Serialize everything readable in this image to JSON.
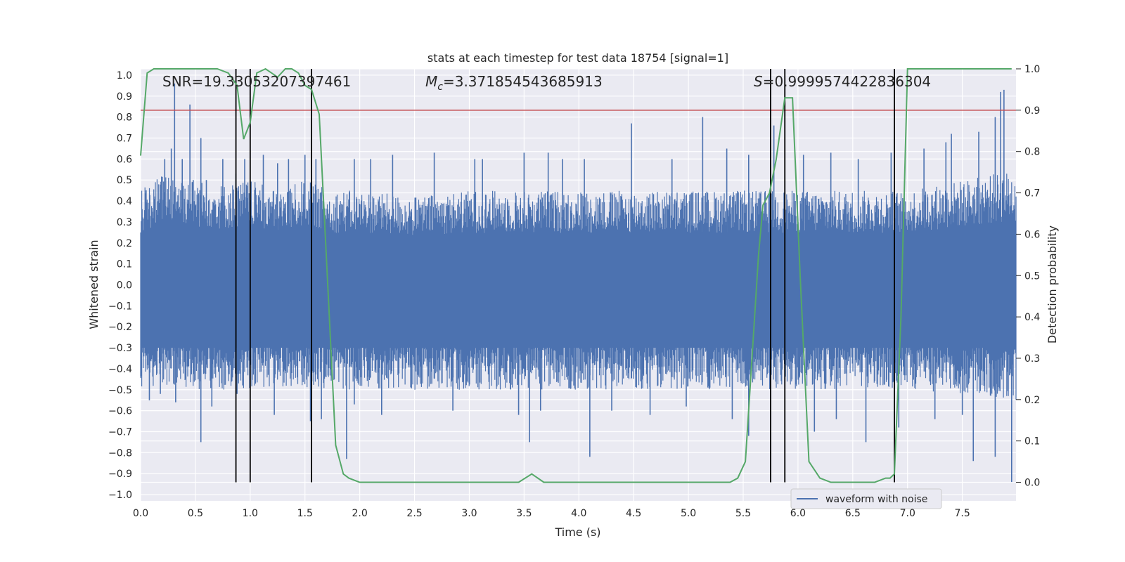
{
  "chart_data": {
    "type": "line",
    "title": "stats at each timestep for test data 18754 [signal=1]",
    "xlabel": "Time (s)",
    "ylabel_left": "Whitened strain",
    "ylabel_right": "Detection probability",
    "xlim": [
      0.0,
      7.99
    ],
    "ylim_left": [
      -1.03,
      1.03
    ],
    "ylim_right": [
      -0.045,
      1.0
    ],
    "x_ticks": [
      "0.0",
      "0.5",
      "1.0",
      "1.5",
      "2.0",
      "2.5",
      "3.0",
      "3.5",
      "4.0",
      "4.5",
      "5.0",
      "5.5",
      "6.0",
      "6.5",
      "7.0",
      "7.5"
    ],
    "y_ticks_left": [
      "1.0",
      "0.9",
      "0.8",
      "0.7",
      "0.6",
      "0.5",
      "0.4",
      "0.3",
      "0.2",
      "0.1",
      "0.0",
      "−0.1",
      "−0.2",
      "−0.3",
      "−0.4",
      "−0.5",
      "−0.6",
      "−0.7",
      "−0.8",
      "−0.9",
      "−1.0"
    ],
    "y_ticks_right": [
      "1.0",
      "0.9",
      "0.8",
      "0.7",
      "0.6",
      "0.5",
      "0.4",
      "0.3",
      "0.2",
      "0.1",
      "0.0"
    ],
    "grid": true,
    "legend": {
      "position": "lower-right",
      "entries": [
        "waveform with noise"
      ]
    },
    "annotations": {
      "snr": "SNR=19.33053207397461",
      "mc_symbol": "M",
      "mc_sub": "c",
      "mc_value": "=3.371854543685913",
      "s_symbol": "S",
      "s_value": "=0.9999574422836304"
    },
    "threshold": {
      "value": 0.9,
      "axis": "right",
      "color": "#c44e52"
    },
    "vertical_markers": [
      0.87,
      1.0,
      1.56,
      5.75,
      5.88,
      6.88
    ],
    "series": [
      {
        "name": "waveform with noise",
        "color": "#4c72b0",
        "axis": "left",
        "envelope_x": [
          0.0,
          0.25,
          0.5,
          0.75,
          1.0,
          1.25,
          1.5,
          1.75,
          2.0,
          2.5,
          3.0,
          3.5,
          4.0,
          4.5,
          5.0,
          5.5,
          6.0,
          6.5,
          7.0,
          7.5,
          7.99
        ],
        "envelope_upper": [
          0.45,
          0.55,
          0.5,
          0.48,
          0.5,
          0.45,
          0.5,
          0.45,
          0.45,
          0.42,
          0.45,
          0.45,
          0.45,
          0.45,
          0.45,
          0.45,
          0.45,
          0.45,
          0.45,
          0.5,
          0.55
        ],
        "envelope_lower": [
          -0.5,
          -0.48,
          -0.5,
          -0.5,
          -0.5,
          -0.48,
          -0.5,
          -0.5,
          -0.5,
          -0.5,
          -0.5,
          -0.5,
          -0.5,
          -0.5,
          -0.5,
          -0.5,
          -0.5,
          -0.5,
          -0.5,
          -0.52,
          -0.55
        ],
        "spikes": [
          [
            0.05,
            0.45
          ],
          [
            0.22,
            0.6
          ],
          [
            0.28,
            0.65
          ],
          [
            0.31,
            0.96
          ],
          [
            0.38,
            0.6
          ],
          [
            0.45,
            0.86
          ],
          [
            0.48,
            0.5
          ],
          [
            0.55,
            0.7
          ],
          [
            0.6,
            0.5
          ],
          [
            0.75,
            0.6
          ],
          [
            0.87,
            0.53
          ],
          [
            0.95,
            0.6
          ],
          [
            1.12,
            0.62
          ],
          [
            1.25,
            0.58
          ],
          [
            1.35,
            0.6
          ],
          [
            1.5,
            0.62
          ],
          [
            1.6,
            0.6
          ],
          [
            1.95,
            0.6
          ],
          [
            2.1,
            0.6
          ],
          [
            2.3,
            0.62
          ],
          [
            2.68,
            0.63
          ],
          [
            3.05,
            0.6
          ],
          [
            3.12,
            0.6
          ],
          [
            3.5,
            0.63
          ],
          [
            3.72,
            0.63
          ],
          [
            3.85,
            0.6
          ],
          [
            4.05,
            0.6
          ],
          [
            4.48,
            0.77
          ],
          [
            4.85,
            0.6
          ],
          [
            5.13,
            0.8
          ],
          [
            5.35,
            0.65
          ],
          [
            5.55,
            0.62
          ],
          [
            5.78,
            0.76
          ],
          [
            6.05,
            0.62
          ],
          [
            6.3,
            0.63
          ],
          [
            6.55,
            0.6
          ],
          [
            6.85,
            0.63
          ],
          [
            7.15,
            0.65
          ],
          [
            7.35,
            0.68
          ],
          [
            7.4,
            0.72
          ],
          [
            7.65,
            0.73
          ],
          [
            7.8,
            0.8
          ],
          [
            7.85,
            0.92
          ],
          [
            7.88,
            0.93
          ],
          [
            0.08,
            -0.55
          ],
          [
            0.18,
            -0.52
          ],
          [
            0.32,
            -0.56
          ],
          [
            0.55,
            -0.75
          ],
          [
            0.65,
            -0.58
          ],
          [
            0.88,
            -0.52
          ],
          [
            1.22,
            -0.62
          ],
          [
            1.55,
            -0.65
          ],
          [
            1.65,
            -0.64
          ],
          [
            1.88,
            -0.83
          ],
          [
            1.95,
            -0.57
          ],
          [
            2.2,
            -0.62
          ],
          [
            2.85,
            -0.6
          ],
          [
            3.45,
            -0.62
          ],
          [
            3.55,
            -0.75
          ],
          [
            3.65,
            -0.6
          ],
          [
            4.1,
            -0.82
          ],
          [
            4.3,
            -0.6
          ],
          [
            4.65,
            -0.62
          ],
          [
            4.98,
            -0.58
          ],
          [
            5.4,
            -0.64
          ],
          [
            5.55,
            -0.72
          ],
          [
            5.75,
            -0.68
          ],
          [
            6.15,
            -0.7
          ],
          [
            6.35,
            -0.64
          ],
          [
            6.62,
            -0.75
          ],
          [
            6.92,
            -0.68
          ],
          [
            7.25,
            -0.64
          ],
          [
            7.5,
            -0.62
          ],
          [
            7.6,
            -0.84
          ],
          [
            7.8,
            -0.82
          ],
          [
            7.95,
            -0.94
          ]
        ]
      },
      {
        "name": "",
        "color": "#55a868",
        "axis": "right",
        "x": [
          0.0,
          0.06,
          0.12,
          0.2,
          0.3,
          0.4,
          0.5,
          0.6,
          0.7,
          0.8,
          0.88,
          0.94,
          1.0,
          1.06,
          1.14,
          1.25,
          1.32,
          1.38,
          1.44,
          1.5,
          1.56,
          1.63,
          1.7,
          1.78,
          1.85,
          1.9,
          2.0,
          2.2,
          2.5,
          2.8,
          3.0,
          3.1,
          3.3,
          3.45,
          3.57,
          3.68,
          3.85,
          4.0,
          4.3,
          4.6,
          4.9,
          5.1,
          5.25,
          5.38,
          5.45,
          5.52,
          5.58,
          5.64,
          5.68,
          5.74,
          5.8,
          5.88,
          5.95,
          6.02,
          6.1,
          6.2,
          6.3,
          6.5,
          6.7,
          6.8,
          6.84,
          6.88,
          6.94,
          7.0,
          7.5,
          7.95
        ],
        "y": [
          0.79,
          0.99,
          1.0,
          1.0,
          1.0,
          1.0,
          1.0,
          1.0,
          1.0,
          0.99,
          0.96,
          0.83,
          0.87,
          0.99,
          1.0,
          0.98,
          1.0,
          1.0,
          0.99,
          0.96,
          0.95,
          0.89,
          0.52,
          0.09,
          0.02,
          0.01,
          0.0,
          0.0,
          0.0,
          0.0,
          0.0,
          0.0,
          0.0,
          0.0,
          0.02,
          0.0,
          0.0,
          0.0,
          0.0,
          0.0,
          0.0,
          0.0,
          0.0,
          0.0,
          0.01,
          0.05,
          0.3,
          0.55,
          0.67,
          0.7,
          0.78,
          0.93,
          0.93,
          0.5,
          0.05,
          0.01,
          0.0,
          0.0,
          0.0,
          0.01,
          0.01,
          0.02,
          0.4,
          1.0,
          1.0,
          1.0
        ]
      }
    ]
  }
}
